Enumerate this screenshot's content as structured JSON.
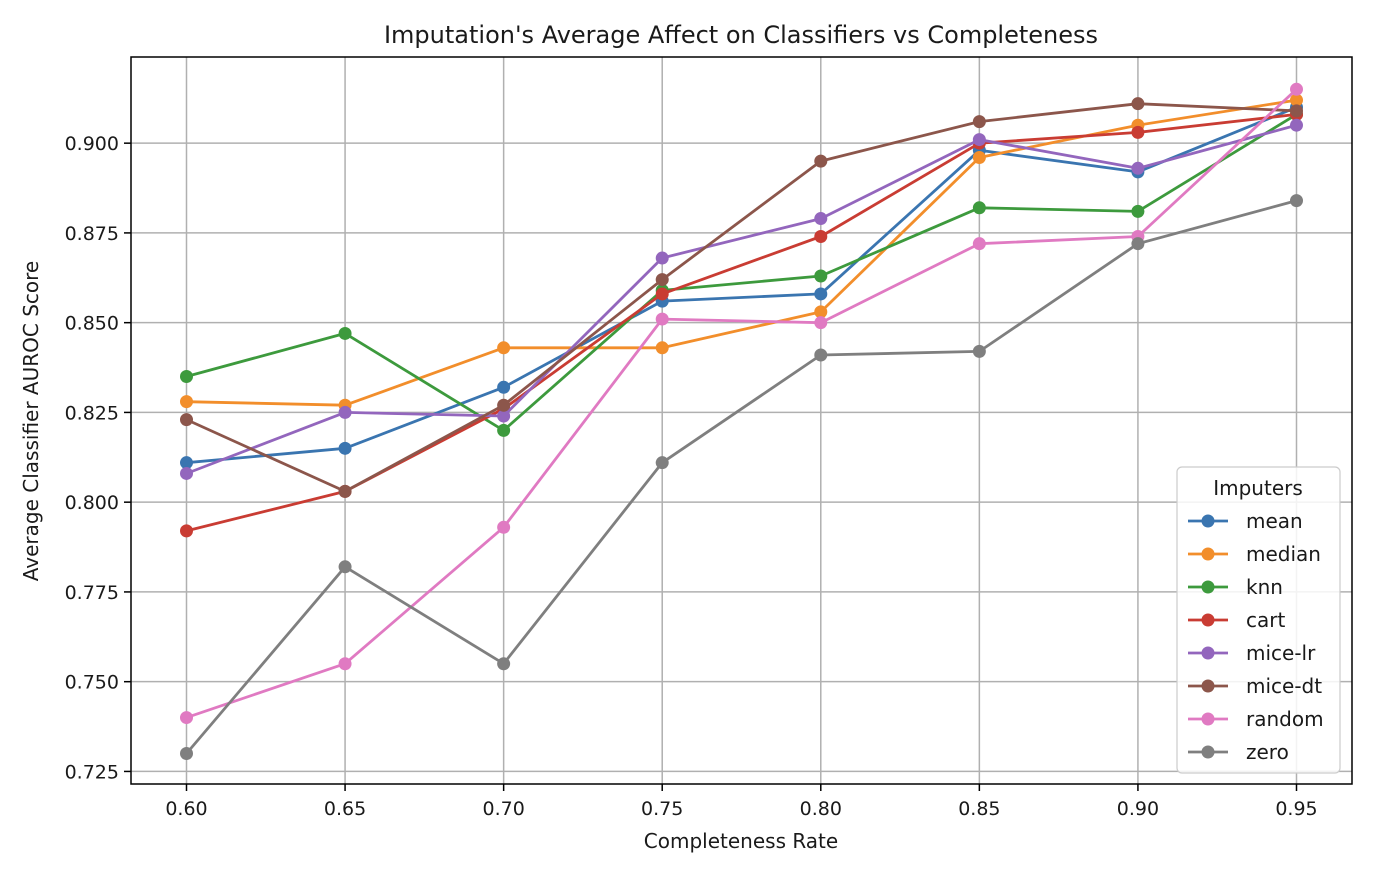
{
  "chart_data": {
    "type": "line",
    "title": "Imputation's Average Affect on Classifiers vs Completeness",
    "xlabel": "Completeness Rate",
    "ylabel": "Average Classifier AUROC Score",
    "x": [
      0.6,
      0.65,
      0.7,
      0.75,
      0.8,
      0.85,
      0.9,
      0.95
    ],
    "x_tick_labels": [
      "0.60",
      "0.65",
      "0.70",
      "0.75",
      "0.80",
      "0.85",
      "0.90",
      "0.95"
    ],
    "y_ticks": [
      0.725,
      0.75,
      0.775,
      0.8,
      0.825,
      0.85,
      0.875,
      0.9
    ],
    "y_tick_labels": [
      "0.725",
      "0.750",
      "0.775",
      "0.800",
      "0.825",
      "0.850",
      "0.875",
      "0.900"
    ],
    "xlim": [
      0.5825,
      0.9675
    ],
    "ylim": [
      0.7215,
      0.924
    ],
    "grid": true,
    "legend_title": "Imputers",
    "legend_position": "bottom-right",
    "series": [
      {
        "name": "mean",
        "color": "#3a75b0",
        "values": [
          0.811,
          0.815,
          0.832,
          0.856,
          0.858,
          0.898,
          0.892,
          0.91
        ]
      },
      {
        "name": "median",
        "color": "#f28e2b",
        "values": [
          0.828,
          0.827,
          0.843,
          0.843,
          0.853,
          0.896,
          0.905,
          0.912
        ]
      },
      {
        "name": "knn",
        "color": "#3d9a3d",
        "values": [
          0.835,
          0.847,
          0.82,
          0.859,
          0.863,
          0.882,
          0.881,
          0.908
        ]
      },
      {
        "name": "cart",
        "color": "#c93c33",
        "values": [
          0.792,
          0.803,
          0.826,
          0.858,
          0.874,
          0.9,
          0.903,
          0.908
        ]
      },
      {
        "name": "mice-lr",
        "color": "#9366bd",
        "values": [
          0.808,
          0.825,
          0.824,
          0.868,
          0.879,
          0.901,
          0.893,
          0.905
        ]
      },
      {
        "name": "mice-dt",
        "color": "#8c564b",
        "values": [
          0.823,
          0.803,
          0.827,
          0.862,
          0.895,
          0.906,
          0.911,
          0.909
        ]
      },
      {
        "name": "random",
        "color": "#e07ac2",
        "values": [
          0.74,
          0.755,
          0.793,
          0.851,
          0.85,
          0.872,
          0.874,
          0.915
        ]
      },
      {
        "name": "zero",
        "color": "#7f7f7f",
        "values": [
          0.73,
          0.782,
          0.755,
          0.811,
          0.841,
          0.842,
          0.872,
          0.884
        ]
      }
    ]
  }
}
